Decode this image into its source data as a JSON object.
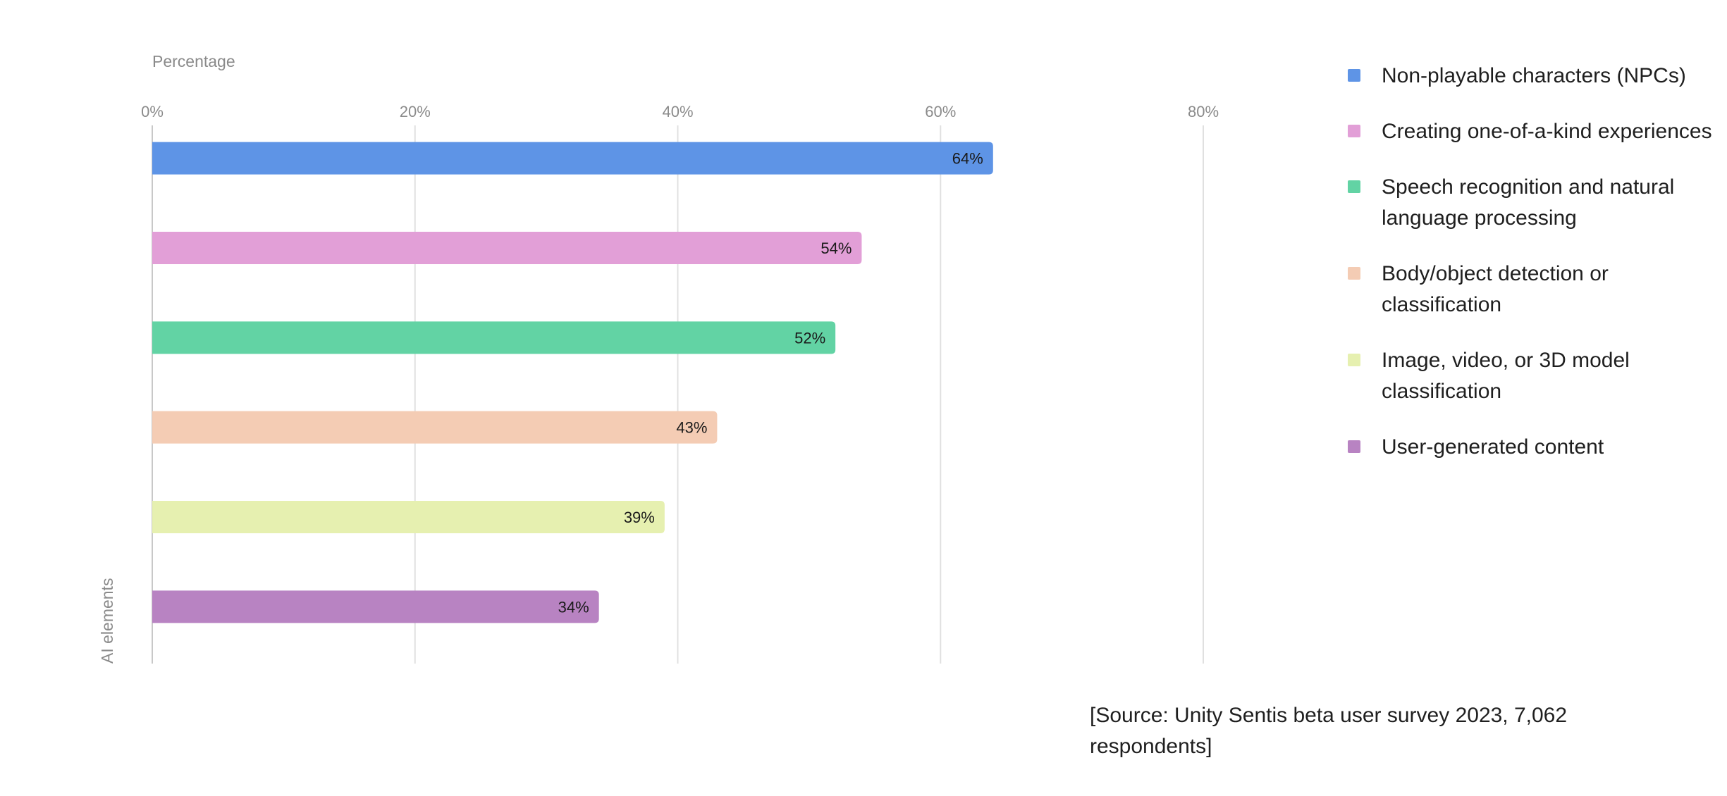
{
  "chart_data": {
    "type": "bar",
    "orientation": "horizontal",
    "xlabel": "Percentage",
    "ylabel": "AI elements",
    "xlim": [
      0,
      80
    ],
    "xticks": [
      "0%",
      "20%",
      "40%",
      "60%",
      "80%"
    ],
    "grid": true,
    "legend_position": "right",
    "categories": [
      "Non-playable characters (NPCs)",
      "Creating one-of-a-kind experiences",
      "Speech recognition and natural language processing",
      "Body/object detection or classification",
      "Image, video, or 3D model classification",
      "User-generated content"
    ],
    "values": [
      64,
      54,
      52,
      43,
      39,
      34
    ],
    "data_labels": [
      "64%",
      "54%",
      "52%",
      "43%",
      "39%",
      "34%"
    ],
    "colors": [
      "#5e94e6",
      "#e29fd7",
      "#62d3a4",
      "#f4ccb4",
      "#e6f0b0",
      "#b883c2"
    ]
  },
  "source_note": "[Source: Unity Sentis beta user survey 2023, 7,062 respondents]"
}
